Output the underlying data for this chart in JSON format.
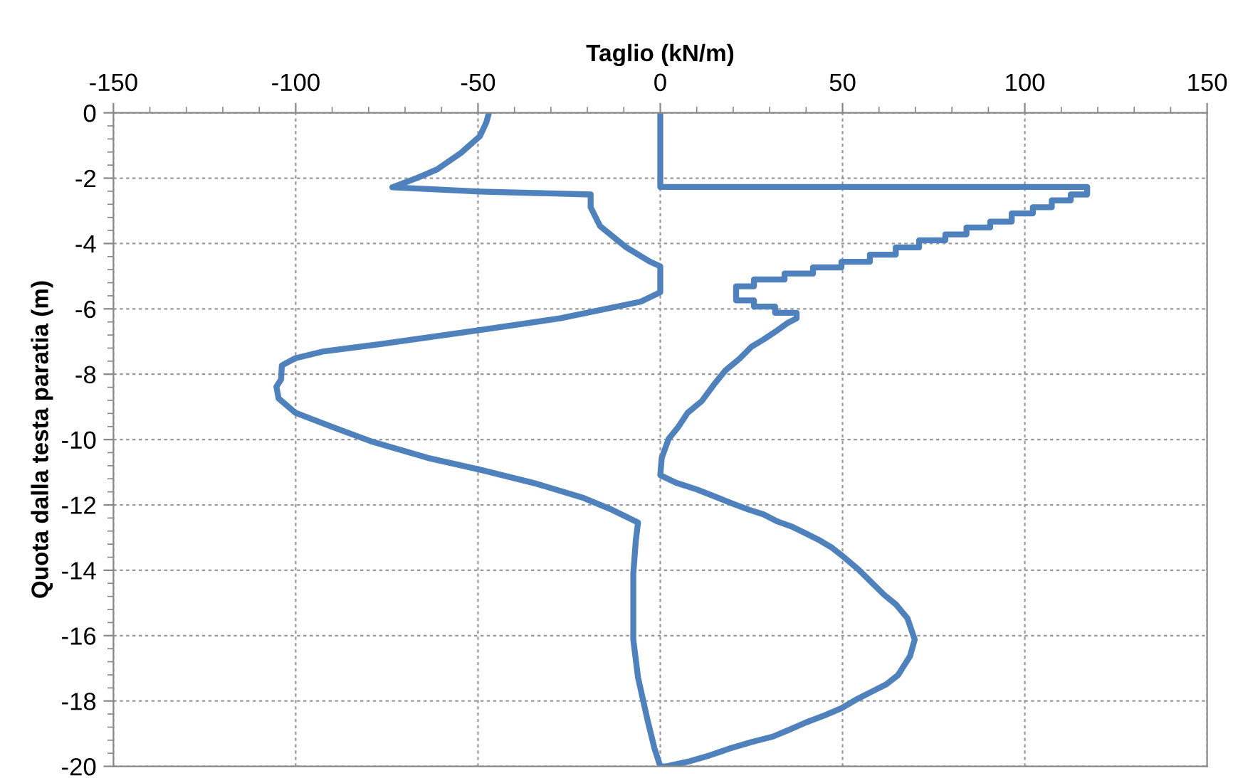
{
  "chart_data": {
    "type": "line",
    "xlabel": "Taglio (kN/m)",
    "ylabel": "Quota dalla testa paratia (m)",
    "xlim": [
      -150,
      150
    ],
    "xticks": [
      -150,
      -100,
      -50,
      0,
      50,
      100,
      150
    ],
    "ylim": [
      -20,
      0
    ],
    "yticks": [
      -20,
      -18,
      -16,
      -14,
      -12,
      -10,
      -8,
      -6,
      -4,
      -2,
      0
    ],
    "grid": true,
    "marker": "none",
    "line_style": "solid",
    "series": [
      {
        "color": "#4f81bd",
        "x": [
          -47,
          -47.7,
          -49.5,
          -54.7,
          -61.2,
          -66.4,
          -73.5,
          -49.5,
          -19.1,
          -19.1,
          -16.5,
          -9.3,
          -2.9,
          0,
          0,
          -5.4,
          -27.5,
          -49.5,
          -76.8,
          -92.3,
          -100.1,
          -103.8,
          -104,
          -105.3,
          -104.7,
          -100.1,
          -89.8,
          -79.4,
          -63.8,
          -49.5,
          -34,
          -21,
          -13.2,
          -6.1,
          -6.7,
          -7.4,
          -7.4,
          -6.1,
          -3.5,
          -1.6,
          0
        ],
        "values": [
          0,
          -0.29,
          -0.72,
          -1.23,
          -1.73,
          -1.98,
          -2.28,
          -2.41,
          -2.5,
          -2.89,
          -3.47,
          -4.12,
          -4.55,
          -4.7,
          -5.49,
          -5.78,
          -6.29,
          -6.65,
          -7.08,
          -7.3,
          -7.51,
          -7.73,
          -8.16,
          -8.38,
          -8.74,
          -9.18,
          -9.62,
          -10.05,
          -10.56,
          -10.92,
          -11.35,
          -11.79,
          -12.15,
          -12.54,
          -13.08,
          -14.1,
          -16.12,
          -17.28,
          -18.58,
          -19.45,
          -20
        ]
      },
      {
        "color": "#4f81bd",
        "x": [
          0,
          0,
          117.1,
          117.1,
          112.6,
          112.6,
          107.4,
          107.4,
          102.2,
          102.2,
          96.4,
          96.4,
          90.5,
          90.5,
          84,
          84,
          78.2,
          78.2,
          71,
          71,
          64.6,
          64.6,
          57.5,
          57.5,
          49.7,
          49.7,
          41.9,
          41.9,
          34.1,
          34.1,
          25.7,
          25.7,
          20.8,
          20.8,
          25.7,
          25.7,
          31.5,
          31.5,
          37.4,
          37.4,
          34.8,
          32.2,
          28.3,
          25,
          21.8,
          17.9,
          14.7,
          11.4,
          7.5,
          4.9,
          2.3,
          0.4,
          0,
          4.3,
          10.1,
          15.3,
          19.8,
          24.4,
          28.3,
          32.2,
          36,
          39.9,
          43.8,
          47.1,
          50.3,
          54.2,
          58.1,
          61.4,
          64.6,
          67.8,
          69.8,
          68.5,
          65.2,
          62,
          58.1,
          54.2,
          49.7,
          45.1,
          39.9,
          35.4,
          30.9,
          25,
          19.2,
          13.4,
          7.5,
          1.7,
          1
        ],
        "values": [
          0,
          -2.27,
          -2.27,
          -2.5,
          -2.5,
          -2.68,
          -2.68,
          -2.89,
          -2.89,
          -3.08,
          -3.08,
          -3.33,
          -3.33,
          -3.51,
          -3.51,
          -3.72,
          -3.72,
          -3.9,
          -3.9,
          -4.12,
          -4.12,
          -4.34,
          -4.34,
          -4.56,
          -4.56,
          -4.73,
          -4.73,
          -4.92,
          -4.92,
          -5.1,
          -5.1,
          -5.31,
          -5.31,
          -5.74,
          -5.74,
          -5.93,
          -5.93,
          -6.12,
          -6.12,
          -6.29,
          -6.44,
          -6.65,
          -6.94,
          -7.16,
          -7.52,
          -7.88,
          -8.32,
          -8.82,
          -9.18,
          -9.62,
          -9.98,
          -10.56,
          -11.09,
          -11.32,
          -11.53,
          -11.76,
          -11.96,
          -12.15,
          -12.29,
          -12.51,
          -12.66,
          -12.87,
          -13.09,
          -13.31,
          -13.59,
          -13.96,
          -14.39,
          -14.75,
          -15.04,
          -15.47,
          -16.12,
          -16.63,
          -17.21,
          -17.49,
          -17.71,
          -17.93,
          -18.22,
          -18.44,
          -18.66,
          -18.88,
          -19.09,
          -19.26,
          -19.45,
          -19.67,
          -19.86,
          -20,
          -20
        ]
      }
    ]
  }
}
